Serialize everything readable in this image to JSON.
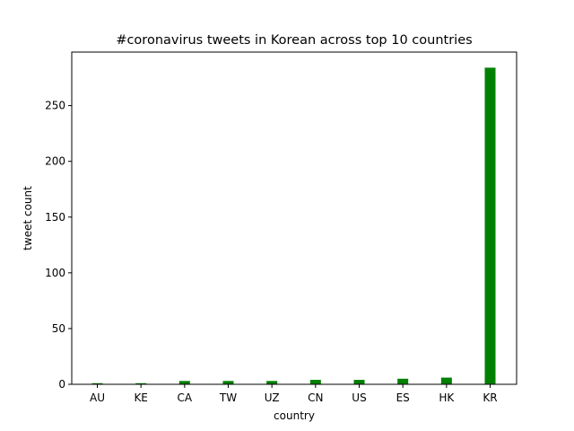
{
  "chart_data": {
    "type": "bar",
    "title": "#coronavirus tweets in Korean across top 10 countries",
    "xlabel": "country",
    "ylabel": "tweet count",
    "categories": [
      "AU",
      "KE",
      "CA",
      "TW",
      "UZ",
      "CN",
      "US",
      "ES",
      "HK",
      "KR"
    ],
    "values": [
      1,
      1,
      3,
      3,
      3,
      4,
      4,
      5,
      6,
      284
    ],
    "ylim": [
      0,
      298
    ],
    "yticks": [
      0,
      50,
      100,
      150,
      200,
      250
    ],
    "bar_color": "#008000",
    "grid": false,
    "legend": "none"
  }
}
